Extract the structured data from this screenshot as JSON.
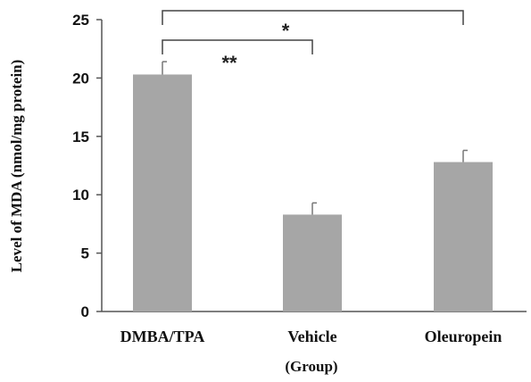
{
  "chart_data": {
    "type": "bar",
    "categories": [
      "DMBA/TPA",
      "Vehicle",
      "Oleuropein"
    ],
    "values": [
      20.3,
      8.3,
      12.8
    ],
    "errors": [
      1.1,
      1.0,
      1.0
    ],
    "ylim": [
      0,
      25
    ],
    "yticks": [
      "0",
      "5",
      "10",
      "15",
      "20",
      "25"
    ],
    "xlabel": "(Group)",
    "ylabel": "Level of MDA (nmol/mg protein)",
    "grid": false,
    "bar_color": "#a6a6a6",
    "significance": [
      {
        "from": 0,
        "to": 2,
        "label": "*"
      },
      {
        "from": 0,
        "to": 1,
        "label": "**"
      }
    ]
  }
}
